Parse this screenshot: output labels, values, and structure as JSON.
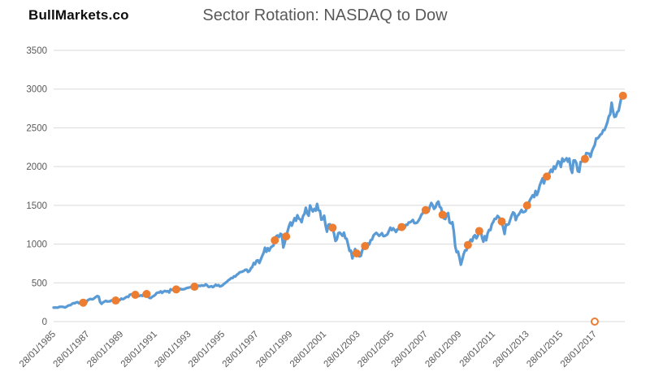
{
  "header": {
    "logo": "BullMarkets.co"
  },
  "colors": {
    "line": "#5B9BD5",
    "marker": "#ED7D31",
    "grid": "#d9d9d9",
    "axis_text": "#595959",
    "title_text": "#595959",
    "background": "#ffffff"
  },
  "chart_data": {
    "type": "line",
    "title": "Sector Rotation: NASDAQ to Dow",
    "xlabel": "",
    "ylabel": "",
    "grid": "horizontal",
    "legend": "none",
    "ylim": [
      0,
      3500
    ],
    "y_ticks": [
      0,
      500,
      1000,
      1500,
      2000,
      2500,
      3000,
      3500
    ],
    "x_domain": [
      1985.07,
      2018.85
    ],
    "x_tick_step_years": 2,
    "x_tick_labels": [
      "28/01/1985",
      "28/01/1987",
      "28/01/1989",
      "28/01/1991",
      "28/01/1993",
      "28/01/1995",
      "28/01/1997",
      "28/01/1999",
      "28/01/2001",
      "28/01/2003",
      "28/01/2005",
      "28/01/2007",
      "28/01/2009",
      "28/01/2011",
      "28/01/2013",
      "28/01/2015",
      "28/01/2017"
    ],
    "series": [
      {
        "name": "index-line",
        "start_year": 1985.07,
        "step_years": 0.083333,
        "values": [
          180,
          181,
          181,
          180,
          190,
          192,
          191,
          189,
          182,
          190,
          202,
          211,
          212,
          227,
          239,
          236,
          247,
          251,
          236,
          253,
          231,
          244,
          249,
          242,
          274,
          284,
          292,
          288,
          290,
          304,
          319,
          330,
          322,
          252,
          230,
          247,
          257,
          268,
          259,
          261,
          262,
          274,
          272,
          262,
          272,
          279,
          274,
          278,
          297,
          289,
          295,
          310,
          321,
          318,
          346,
          352,
          349,
          340,
          346,
          353,
          329,
          332,
          340,
          331,
          361,
          358,
          356,
          323,
          306,
          304,
          322,
          330,
          344,
          367,
          375,
          375,
          390,
          371,
          388,
          395,
          388,
          393,
          375,
          417,
          409,
          413,
          404,
          415,
          415,
          408,
          424,
          414,
          418,
          419,
          431,
          436,
          439,
          443,
          452,
          440,
          450,
          451,
          448,
          464,
          459,
          468,
          462,
          466,
          482,
          467,
          446,
          451,
          457,
          444,
          458,
          476,
          463,
          472,
          454,
          459,
          470,
          487,
          501,
          515,
          533,
          545,
          562,
          562,
          584,
          582,
          605,
          616,
          636,
          640,
          646,
          654,
          669,
          671,
          640,
          652,
          687,
          705,
          757,
          741,
          786,
          791,
          757,
          801,
          848,
          885,
          954,
          900,
          947,
          915,
          955,
          970,
          980,
          1049,
          1102,
          1112,
          1091,
          1134,
          1121,
          957,
          1017,
          1099,
          1164,
          1229,
          1280,
          1238,
          1286,
          1335,
          1302,
          1373,
          1329,
          1320,
          1283,
          1363,
          1389,
          1469,
          1394,
          1366,
          1499,
          1452,
          1421,
          1455,
          1431,
          1518,
          1437,
          1429,
          1315,
          1320,
          1366,
          1240,
          1160,
          1250,
          1256,
          1224,
          1211,
          1134,
          1041,
          1060,
          1140,
          1148,
          1130,
          1107,
          1147,
          1077,
          1067,
          990,
          912,
          916,
          815,
          886,
          936,
          880,
          856,
          841,
          848,
          917,
          964,
          975,
          990,
          1008,
          996,
          1051,
          1058,
          1112,
          1131,
          1145,
          1126,
          1107,
          1121,
          1141,
          1102,
          1104,
          1115,
          1130,
          1174,
          1212,
          1181,
          1204,
          1181,
          1157,
          1192,
          1191,
          1234,
          1220,
          1229,
          1207,
          1249,
          1248,
          1280,
          1281,
          1295,
          1311,
          1270,
          1270,
          1277,
          1304,
          1336,
          1378,
          1401,
          1418,
          1438,
          1407,
          1421,
          1482,
          1531,
          1503,
          1455,
          1474,
          1527,
          1549,
          1481,
          1468,
          1379,
          1331,
          1323,
          1386,
          1400,
          1280,
          1267,
          1283,
          1166,
          969,
          896,
          903,
          826,
          735,
          798,
          873,
          919,
          919,
          988,
          1021,
          1057,
          1036,
          1096,
          1115,
          1074,
          1105,
          1169,
          1187,
          1089,
          1031,
          1102,
          1049,
          1141,
          1183,
          1181,
          1258,
          1286,
          1327,
          1326,
          1364,
          1345,
          1321,
          1292,
          1219,
          1131,
          1253,
          1247,
          1258,
          1312,
          1366,
          1409,
          1398,
          1310,
          1362,
          1379,
          1407,
          1441,
          1412,
          1416,
          1426,
          1498,
          1515,
          1569,
          1598,
          1631,
          1606,
          1686,
          1633,
          1682,
          1757,
          1806,
          1848,
          1783,
          1860,
          1872,
          1884,
          1924,
          1960,
          1931,
          2003,
          1972,
          2018,
          2068,
          2059,
          1995,
          2105,
          2068,
          2086,
          2107,
          2063,
          2104,
          1972,
          1920,
          2079,
          2080,
          2044,
          1940,
          1932,
          2060,
          2065,
          2097,
          2099,
          2174,
          2171,
          2168,
          2126,
          2199,
          2239,
          2279,
          2364,
          2363,
          2384,
          2412,
          2423,
          2470,
          2472,
          2519,
          2575,
          2648,
          2674,
          2824,
          2714,
          2641,
          2648,
          2705,
          2718,
          2816,
          2902,
          2914
        ]
      }
    ],
    "rotation_markers": {
      "name": "sector-rotation-points",
      "points": [
        [
          1986.82,
          244
        ],
        [
          1988.74,
          272
        ],
        [
          1989.9,
          346
        ],
        [
          1990.57,
          356
        ],
        [
          1992.32,
          415
        ],
        [
          1993.4,
          450
        ],
        [
          1998.15,
          1049
        ],
        [
          1998.82,
          1099
        ],
        [
          2001.57,
          1211
        ],
        [
          2002.99,
          880
        ],
        [
          2003.49,
          975
        ],
        [
          2005.65,
          1220
        ],
        [
          2007.07,
          1438
        ],
        [
          2008.07,
          1379
        ],
        [
          2009.57,
          988
        ],
        [
          2010.24,
          1169
        ],
        [
          2011.57,
          1292
        ],
        [
          2013.07,
          1498
        ],
        [
          2014.24,
          1872
        ],
        [
          2016.49,
          2099
        ],
        [
          2018.74,
          2914
        ]
      ]
    },
    "open_marker": {
      "name": "hollow-rotation-point",
      "point": [
        2017.07,
        0
      ]
    }
  }
}
